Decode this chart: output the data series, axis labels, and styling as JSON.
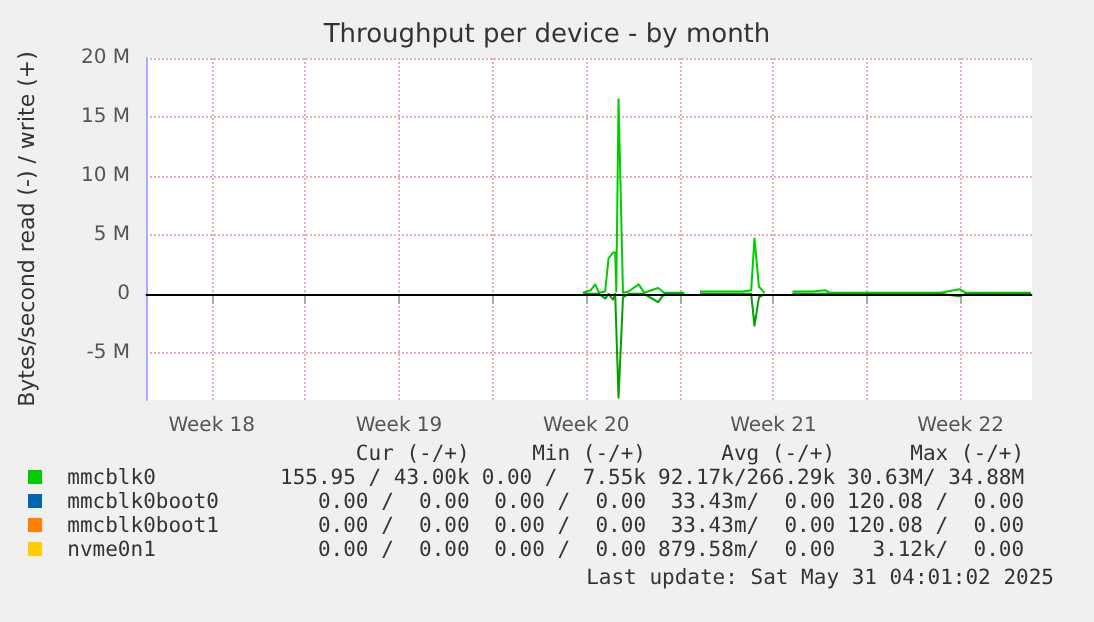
{
  "chart_data": {
    "type": "line",
    "title": "Throughput per device - by month",
    "ylabel": "Bytes/second read (-) / write (+)",
    "x": [
      "2025-05-14T09:00",
      "2025-05-14T16:00",
      "2025-05-14T20:00",
      "2025-05-14T23:30",
      "2025-05-15T05:00",
      "2025-05-15T08:00",
      "2025-05-15T12:00",
      "2025-05-15T14:00",
      "2025-05-15T15:00",
      "2025-05-15T17:00",
      "2025-05-15T21:00",
      "2025-05-16T02:00",
      "2025-05-16T11:00",
      "2025-05-16T16:00",
      "2025-05-17T04:30",
      "2025-05-17T10:00",
      "2025-05-18T04:00",
      "2025-05-18T08:00",
      "2025-05-18T18:00",
      "2025-05-19T15:00",
      "2025-05-20T09:00",
      "2025-05-20T16:00",
      "2025-05-20T19:00",
      "2025-05-20T23:00",
      "2025-05-21T04:00",
      "2025-05-21T11:00",
      "2025-05-22T05:00",
      "2025-05-22T23:00",
      "2025-05-23T11:00",
      "2025-05-23T14:00",
      "2025-05-24T01:00",
      "2025-05-24T19:00",
      "2025-05-25T21:00",
      "2025-05-27T00:00",
      "2025-05-27T17:30",
      "2025-05-28T11:00",
      "2025-05-28T16:30",
      "2025-05-29T14:00",
      "2025-05-30T12:00",
      "2025-05-31T03:00"
    ],
    "series": [
      {
        "name": "mmcblk0",
        "color": "#00cc00",
        "values": [
          100000,
          300000,
          800000,
          100000,
          200000,
          3000000,
          3500000,
          3500000,
          200000,
          16500000,
          100000,
          200000,
          800000,
          100000,
          500000,
          100000,
          100000,
          null,
          200000,
          200000,
          200000,
          300000,
          4700000,
          600000,
          100000,
          null,
          200000,
          200000,
          300000,
          100000,
          100000,
          100000,
          100000,
          100000,
          100000,
          400000,
          100000,
          100000,
          100000,
          100000
        ]
      },
      {
        "color": "#00a000",
        "values": [
          0,
          0,
          0,
          0,
          -400000,
          0,
          -500000,
          0,
          0,
          -8800000,
          -300000,
          0,
          0,
          0,
          -700000,
          0,
          0,
          null,
          0,
          0,
          0,
          0,
          -2700000,
          -300000,
          0,
          null,
          0,
          0,
          0,
          0,
          0,
          0,
          0,
          0,
          0,
          -200000,
          0,
          0,
          0,
          0
        ]
      },
      {
        "name": "mmcblk0boot0",
        "color": "#0066b3",
        "values": [
          null,
          null,
          null,
          null,
          null,
          null,
          null,
          null,
          null,
          null,
          null,
          null,
          null,
          null,
          null,
          null,
          null,
          null,
          null,
          null,
          null,
          null,
          null,
          null,
          null,
          null,
          null,
          null,
          null,
          null,
          null,
          null,
          null,
          null,
          null,
          null,
          null,
          null,
          null,
          null
        ]
      },
      {
        "name": "mmcblk0boot1",
        "color": "#ff8000",
        "values": [
          null,
          null,
          null,
          null,
          null,
          null,
          null,
          null,
          null,
          null,
          null,
          null,
          null,
          null,
          null,
          null,
          null,
          null,
          null,
          null,
          null,
          null,
          null,
          null,
          null,
          null,
          null,
          null,
          null,
          null,
          null,
          null,
          null,
          null,
          null,
          null,
          null,
          null,
          null,
          null
        ]
      },
      {
        "name": "nvme0n1",
        "color": "#ffcc00",
        "values": [
          null,
          null,
          null,
          null,
          null,
          null,
          null,
          null,
          null,
          null,
          null,
          null,
          null,
          null,
          null,
          null,
          null,
          null,
          null,
          null,
          null,
          null,
          null,
          null,
          null,
          null,
          null,
          null,
          null,
          null,
          null,
          null,
          null,
          null,
          null,
          null,
          null,
          null,
          null,
          null
        ]
      }
    ],
    "xlim": [
      "2025-04-28T01:00",
      "2025-05-31T04:00"
    ],
    "xticks": [
      {
        "value": "2025-04-30T12:00",
        "label": "Week 18"
      },
      {
        "value": "2025-05-04",
        "label": null
      },
      {
        "value": "2025-05-07T12:00",
        "label": "Week 19"
      },
      {
        "value": "2025-05-11",
        "label": null
      },
      {
        "value": "2025-05-14T12:00",
        "label": "Week 20"
      },
      {
        "value": "2025-05-18",
        "label": null
      },
      {
        "value": "2025-05-21T12:00",
        "label": "Week 21"
      },
      {
        "value": "2025-05-25",
        "label": null
      },
      {
        "value": "2025-05-28T12:00",
        "label": "Week 22"
      }
    ],
    "ylim": [
      -9000000,
      20000000
    ],
    "yticks": [
      {
        "value": -5000000,
        "label": "-5 M"
      },
      0,
      {
        "value": 5000000,
        "label": "5 M"
      },
      {
        "value": 10000000,
        "label": "10 M"
      },
      {
        "value": 15000000,
        "label": "15 M"
      },
      {
        "value": 20000000,
        "label": "20 M"
      }
    ],
    "ref_lines": [
      {
        "axis": "y",
        "value": 0,
        "color": "#000000"
      }
    ],
    "grid": true,
    "legend": "bottom",
    "marker": "none",
    "line_style": "solid",
    "annotations": [
      "Cur (-/+)",
      "Min (-/+)",
      "Avg (-/+)",
      "Max (-/+)",
      "155.95 / 43.00k",
      "0.00 /  7.55k",
      "92.17k/266.29k",
      "30.63M/ 34.88M",
      "0.00 /  0.00",
      "0.00 /  0.00",
      "33.43m/  0.00",
      "120.08 /  0.00",
      "0.00 /  0.00",
      "0.00 /  0.00",
      "33.43m/  0.00",
      "120.08 /  0.00",
      "0.00 /  0.00",
      "0.00 /  0.00",
      "879.58m/  0.00",
      "3.12k/  0.00",
      "Last update: Sat May 31 04:01:02 2025"
    ]
  }
}
